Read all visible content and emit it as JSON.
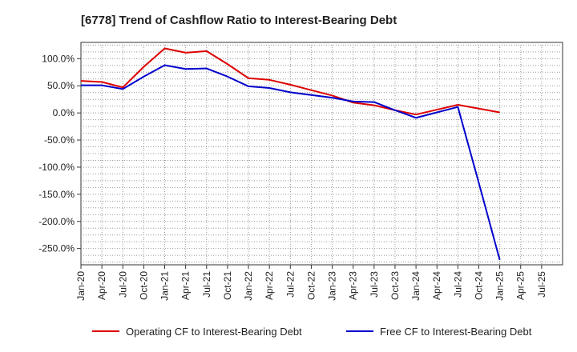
{
  "chart_data": {
    "type": "line",
    "title": "[6778]  Trend of Cashflow Ratio to Interest-Bearing Debt",
    "xlabel": "",
    "ylabel": "",
    "x": [
      "Jan-20",
      "Apr-20",
      "Jul-20",
      "Oct-20",
      "Jan-21",
      "Apr-21",
      "Jul-21",
      "Oct-21",
      "Jan-22",
      "Apr-22",
      "Jul-22",
      "Oct-22",
      "Jan-23",
      "Apr-23",
      "Jul-23",
      "Oct-23",
      "Jan-24",
      "Apr-24",
      "Jul-24",
      "Oct-24",
      "Jan-25",
      "Apr-25"
    ],
    "x_ticks": [
      "Jan-20",
      "Apr-20",
      "Jul-20",
      "Oct-20",
      "Jan-21",
      "Apr-21",
      "Jul-21",
      "Oct-21",
      "Jan-22",
      "Apr-22",
      "Jul-22",
      "Oct-22",
      "Jan-23",
      "Apr-23",
      "Jul-23",
      "Oct-23",
      "Jan-24",
      "Apr-24",
      "Jul-24",
      "Oct-24",
      "Jan-25",
      "Apr-25",
      "Jul-25"
    ],
    "y_ticks": [
      100,
      50,
      0,
      -50,
      -100,
      -150,
      -200,
      -250
    ],
    "y_tick_labels": [
      "100.0%",
      "50.0%",
      "0.0%",
      "-50.0%",
      "-100.0%",
      "-150.0%",
      "-200.0%",
      "-250.0%"
    ],
    "ylim": [
      -280,
      130
    ],
    "grid": true,
    "legend_position": "bottom",
    "series": [
      {
        "name": "Operating CF to Interest-Bearing Debt",
        "color": "#dd0000",
        "values": [
          59,
          57,
          47,
          85,
          119,
          111,
          114,
          90,
          64,
          61,
          52,
          42,
          32,
          19,
          14,
          5,
          -3,
          6,
          15,
          8,
          1,
          null
        ]
      },
      {
        "name": "Free CF to Interest-Bearing Debt",
        "color": "#0000cc",
        "values": [
          51,
          51,
          44,
          67,
          88,
          81,
          82,
          67,
          49,
          46,
          38,
          33,
          28,
          21,
          20,
          5,
          -9,
          1,
          11,
          -129,
          -271,
          null
        ]
      }
    ]
  }
}
